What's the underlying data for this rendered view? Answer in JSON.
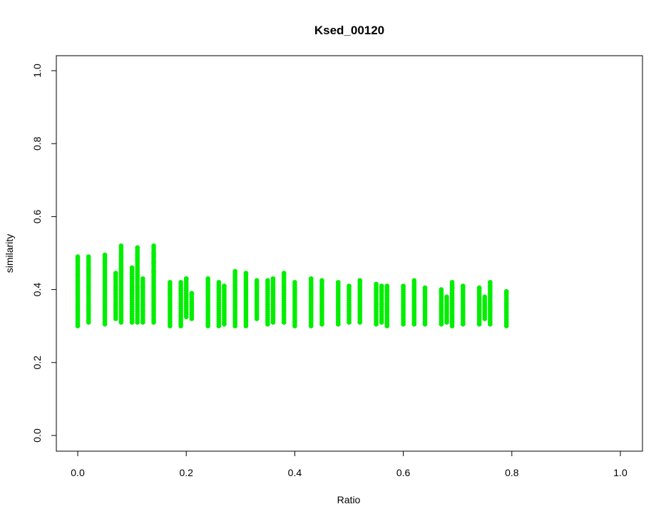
{
  "chart_data": {
    "type": "scatter",
    "title": "Ksed_00120",
    "xlabel": "Ratio",
    "ylabel": "similarity",
    "xlim": [
      0,
      1
    ],
    "ylim": [
      0,
      1
    ],
    "x_ticks": [
      "0.0",
      "0.2",
      "0.4",
      "0.6",
      "0.8",
      "1.0"
    ],
    "y_ticks": [
      "0.0",
      "0.2",
      "0.4",
      "0.6",
      "0.8",
      "1.0"
    ],
    "grid": false,
    "legend": "none",
    "point_color": "#00ee00",
    "columns": [
      {
        "x": 0.0,
        "y_min": 0.3,
        "y_max": 0.49,
        "outliers": [
          0.48,
          0.44,
          0.42
        ]
      },
      {
        "x": 0.02,
        "y_min": 0.31,
        "y_max": 0.49,
        "outliers": [
          0.455
        ]
      },
      {
        "x": 0.05,
        "y_min": 0.305,
        "y_max": 0.495,
        "outliers": [
          0.475
        ]
      },
      {
        "x": 0.07,
        "y_min": 0.32,
        "y_max": 0.445,
        "outliers": []
      },
      {
        "x": 0.08,
        "y_min": 0.31,
        "y_max": 0.52,
        "outliers": [
          0.47,
          0.46
        ]
      },
      {
        "x": 0.1,
        "y_min": 0.31,
        "y_max": 0.46,
        "outliers": [
          0.43
        ]
      },
      {
        "x": 0.11,
        "y_min": 0.31,
        "y_max": 0.515,
        "outliers": [
          0.43
        ]
      },
      {
        "x": 0.12,
        "y_min": 0.31,
        "y_max": 0.43,
        "outliers": []
      },
      {
        "x": 0.14,
        "y_min": 0.31,
        "y_max": 0.52,
        "outliers": [
          0.5,
          0.475,
          0.45
        ]
      },
      {
        "x": 0.17,
        "y_min": 0.3,
        "y_max": 0.42,
        "outliers": []
      },
      {
        "x": 0.19,
        "y_min": 0.3,
        "y_max": 0.42,
        "outliers": []
      },
      {
        "x": 0.2,
        "y_min": 0.325,
        "y_max": 0.43,
        "outliers": []
      },
      {
        "x": 0.21,
        "y_min": 0.32,
        "y_max": 0.39,
        "outliers": []
      },
      {
        "x": 0.24,
        "y_min": 0.3,
        "y_max": 0.43,
        "outliers": []
      },
      {
        "x": 0.26,
        "y_min": 0.3,
        "y_max": 0.42,
        "outliers": []
      },
      {
        "x": 0.27,
        "y_min": 0.305,
        "y_max": 0.41,
        "outliers": []
      },
      {
        "x": 0.29,
        "y_min": 0.3,
        "y_max": 0.45,
        "outliers": []
      },
      {
        "x": 0.31,
        "y_min": 0.3,
        "y_max": 0.445,
        "outliers": []
      },
      {
        "x": 0.33,
        "y_min": 0.32,
        "y_max": 0.425,
        "outliers": []
      },
      {
        "x": 0.35,
        "y_min": 0.305,
        "y_max": 0.425,
        "outliers": []
      },
      {
        "x": 0.36,
        "y_min": 0.31,
        "y_max": 0.43,
        "outliers": []
      },
      {
        "x": 0.38,
        "y_min": 0.31,
        "y_max": 0.445,
        "outliers": []
      },
      {
        "x": 0.4,
        "y_min": 0.3,
        "y_max": 0.42,
        "outliers": []
      },
      {
        "x": 0.43,
        "y_min": 0.3,
        "y_max": 0.43,
        "outliers": []
      },
      {
        "x": 0.45,
        "y_min": 0.305,
        "y_max": 0.425,
        "outliers": []
      },
      {
        "x": 0.48,
        "y_min": 0.305,
        "y_max": 0.42,
        "outliers": []
      },
      {
        "x": 0.5,
        "y_min": 0.31,
        "y_max": 0.41,
        "outliers": []
      },
      {
        "x": 0.52,
        "y_min": 0.31,
        "y_max": 0.425,
        "outliers": []
      },
      {
        "x": 0.55,
        "y_min": 0.305,
        "y_max": 0.415,
        "outliers": []
      },
      {
        "x": 0.56,
        "y_min": 0.31,
        "y_max": 0.41,
        "outliers": [
          0.395,
          0.36
        ]
      },
      {
        "x": 0.57,
        "y_min": 0.3,
        "y_max": 0.41,
        "outliers": []
      },
      {
        "x": 0.6,
        "y_min": 0.305,
        "y_max": 0.41,
        "outliers": []
      },
      {
        "x": 0.62,
        "y_min": 0.305,
        "y_max": 0.425,
        "outliers": []
      },
      {
        "x": 0.64,
        "y_min": 0.305,
        "y_max": 0.405,
        "outliers": []
      },
      {
        "x": 0.67,
        "y_min": 0.305,
        "y_max": 0.4,
        "outliers": []
      },
      {
        "x": 0.68,
        "y_min": 0.31,
        "y_max": 0.38,
        "outliers": [
          0.335
        ]
      },
      {
        "x": 0.69,
        "y_min": 0.3,
        "y_max": 0.42,
        "outliers": [
          0.405
        ]
      },
      {
        "x": 0.71,
        "y_min": 0.305,
        "y_max": 0.41,
        "outliers": []
      },
      {
        "x": 0.74,
        "y_min": 0.305,
        "y_max": 0.405,
        "outliers": []
      },
      {
        "x": 0.75,
        "y_min": 0.32,
        "y_max": 0.38,
        "outliers": [
          0.35
        ]
      },
      {
        "x": 0.76,
        "y_min": 0.305,
        "y_max": 0.42,
        "outliers": []
      },
      {
        "x": 0.79,
        "y_min": 0.3,
        "y_max": 0.395,
        "outliers": []
      }
    ]
  }
}
